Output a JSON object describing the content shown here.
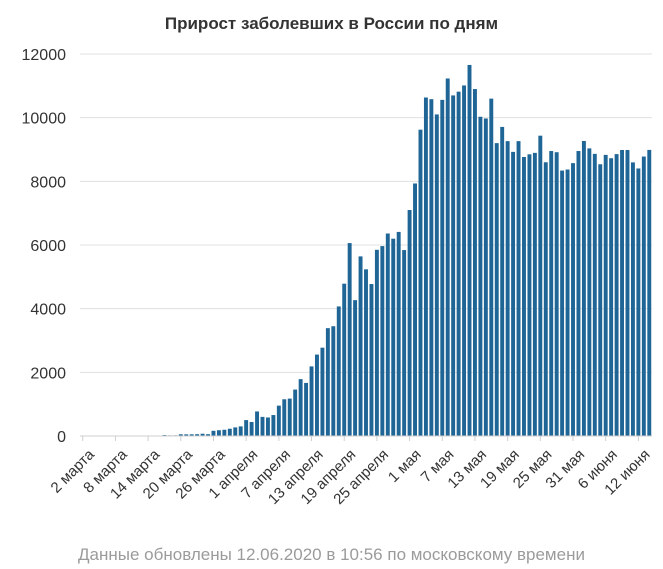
{
  "chart_data": {
    "type": "bar",
    "title": "Прирост заболевших в России по дням",
    "xlabel": "",
    "ylabel": "",
    "ylim": [
      0,
      12000
    ],
    "yticks": [
      "0",
      "2000",
      "4000",
      "6000",
      "8000",
      "10000",
      "12000"
    ],
    "grid": true,
    "legend": "none",
    "bar_color": "#1f6696",
    "tick_labels": [
      {
        "label": "2 марта",
        "index": 0
      },
      {
        "label": "8 марта",
        "index": 6
      },
      {
        "label": "14 марта",
        "index": 12
      },
      {
        "label": "20 марта",
        "index": 18
      },
      {
        "label": "26 марта",
        "index": 24
      },
      {
        "label": "1 апреля",
        "index": 30
      },
      {
        "label": "7 апреля",
        "index": 36
      },
      {
        "label": "13 апреля",
        "index": 42
      },
      {
        "label": "19 апреля",
        "index": 48
      },
      {
        "label": "25 апреля",
        "index": 54
      },
      {
        "label": "1 мая",
        "index": 60
      },
      {
        "label": "7 мая",
        "index": 66
      },
      {
        "label": "13 мая",
        "index": 72
      },
      {
        "label": "19 мая",
        "index": 78
      },
      {
        "label": "25 мая",
        "index": 84
      },
      {
        "label": "31 мая",
        "index": 90
      },
      {
        "label": "6 июня",
        "index": 96
      },
      {
        "label": "12 июня",
        "index": 102
      }
    ],
    "values": [
      3,
      0,
      0,
      0,
      0,
      0,
      7,
      0,
      3,
      0,
      8,
      8,
      6,
      14,
      0,
      30,
      20,
      21,
      54,
      52,
      53,
      57,
      71,
      57,
      163,
      182,
      196,
      228,
      270,
      302,
      500,
      440,
      771,
      601,
      582,
      658,
      954,
      1154,
      1175,
      1459,
      1786,
      1667,
      2186,
      2558,
      2774,
      3388,
      3448,
      4070,
      4785,
      6060,
      4268,
      5642,
      5236,
      4774,
      5849,
      5966,
      6361,
      6198,
      6411,
      5841,
      7099,
      7933,
      9623,
      10633,
      10581,
      10102,
      10559,
      11231,
      10699,
      10817,
      11012,
      11656,
      10899,
      10028,
      9974,
      10598,
      9200,
      9709,
      9263,
      8926,
      9263,
      8764,
      8849,
      8894,
      9434,
      8599,
      8952,
      8915,
      8338,
      8371,
      8572,
      8952,
      9268,
      9035,
      8863,
      8536,
      8831,
      8726,
      8855,
      8985,
      8984,
      8595,
      8404,
      8779,
      8987
    ]
  },
  "footer": {
    "note": "Данные обновлены 12.06.2020 в 10:56 по московскому времени"
  }
}
